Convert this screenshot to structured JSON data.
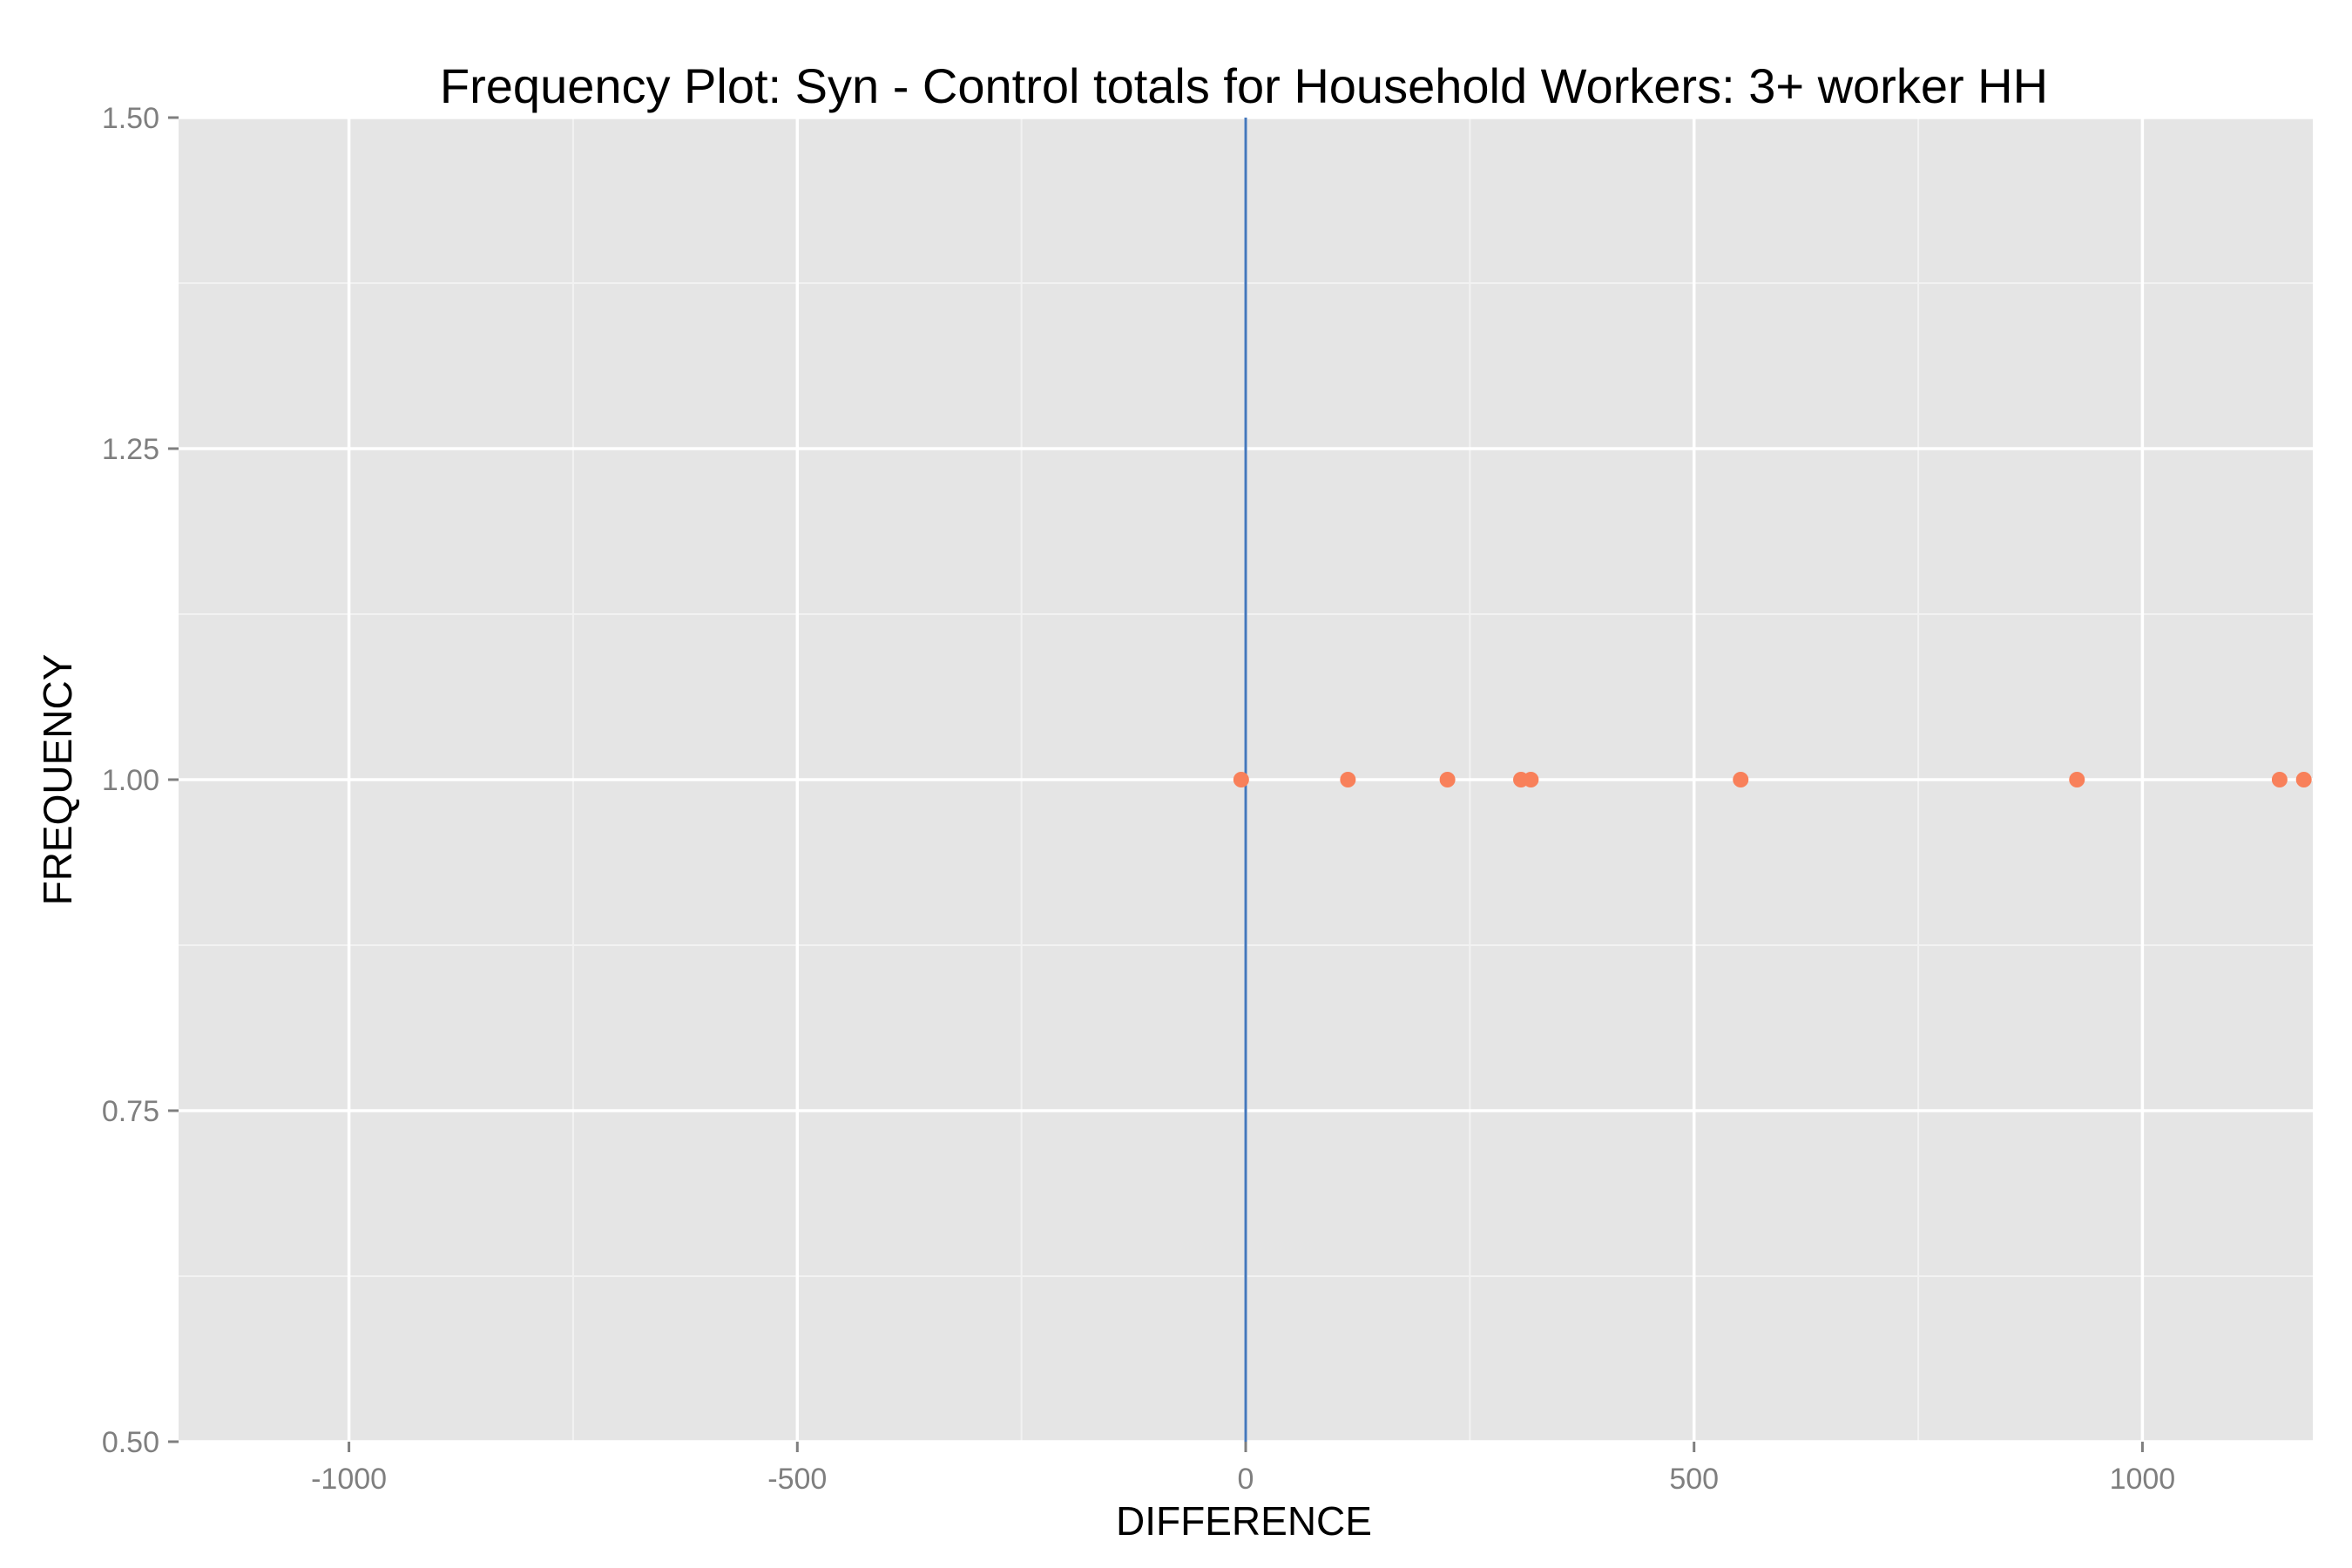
{
  "chart_data": {
    "type": "scatter",
    "title": "Frequency Plot: Syn - Control totals for Household Workers: 3+ worker HH",
    "xlabel": "DIFFERENCE",
    "ylabel": "FREQUENCY",
    "xlim": [
      -1190,
      1190
    ],
    "ylim": [
      0.5,
      1.5
    ],
    "x_ticks": [
      -1000,
      -500,
      0,
      500,
      1000
    ],
    "x_tick_labels": [
      "-1000",
      "-500",
      "0",
      "500",
      "1000"
    ],
    "y_ticks": [
      0.5,
      0.75,
      1.0,
      1.25,
      1.5
    ],
    "y_tick_labels": [
      "0.50",
      "0.75",
      "1.00",
      "1.25",
      "1.50"
    ],
    "grid": true,
    "reference_line": {
      "x": 0,
      "color": "#4477bb"
    },
    "series": [
      {
        "color": "#f8805a",
        "points": [
          {
            "x": -5,
            "y": 1
          },
          {
            "x": 114,
            "y": 1
          },
          {
            "x": 225,
            "y": 1
          },
          {
            "x": 307,
            "y": 1
          },
          {
            "x": 318,
            "y": 1
          },
          {
            "x": 552,
            "y": 1
          },
          {
            "x": 927,
            "y": 1
          },
          {
            "x": 1153,
            "y": 1
          },
          {
            "x": 1180,
            "y": 1
          }
        ]
      }
    ],
    "colors": {
      "panel_background": "#e5e5e5",
      "major_grid": "#ffffff",
      "minor_grid": "#f2f2f2",
      "tick_mark": "#7f7f7f"
    }
  }
}
